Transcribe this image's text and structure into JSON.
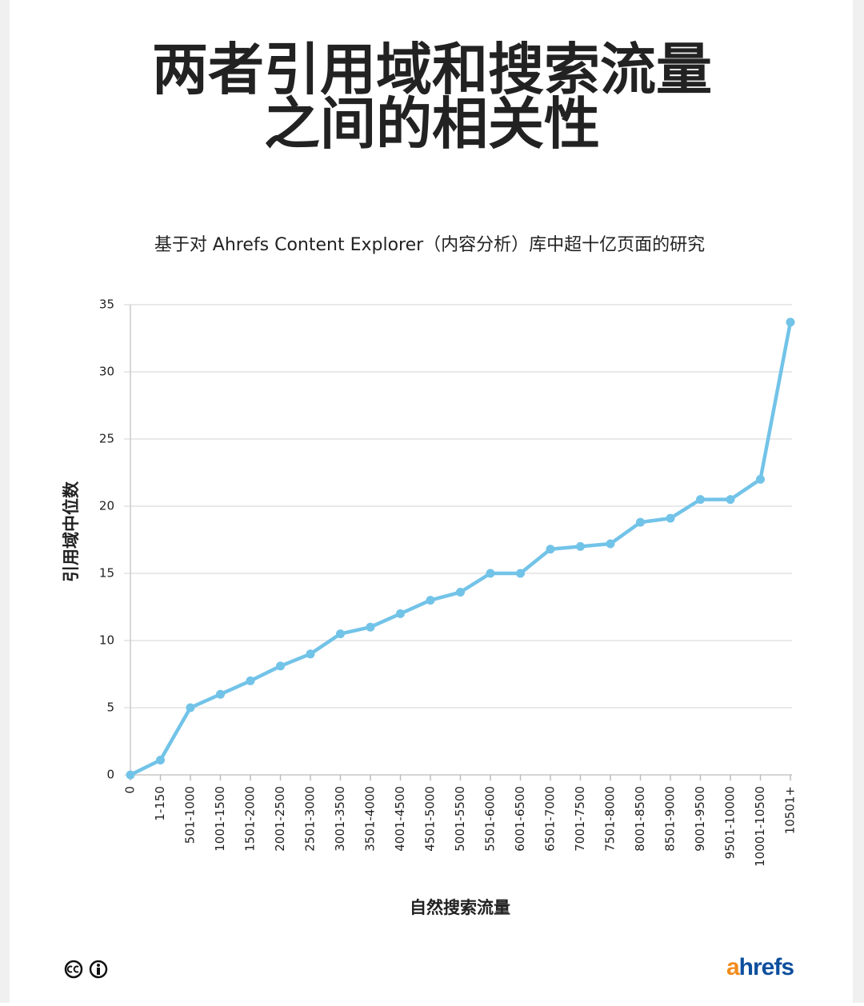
{
  "chart_data": {
    "type": "line",
    "title": [
      "两者引用域和搜索流量",
      "之间的相关性"
    ],
    "subtitle": "基于对 Ahrefs Content Explorer（内容分析）库中超十亿页面的研究",
    "y_label": "引用域中位数",
    "x_label": "自然搜索流量",
    "categories": [
      "0",
      "1-150",
      "501-1000",
      "1001-1500",
      "1501-2000",
      "2001-2500",
      "2501-3000",
      "3001-3500",
      "3501-4000",
      "4001-4500",
      "4501-5000",
      "5001-5500",
      "5501-6000",
      "6001-6500",
      "6501-7000",
      "7001-7500",
      "7501-8000",
      "8001-8500",
      "8501-9000",
      "9001-9500",
      "9501-10000",
      "10001-10500",
      "10501+"
    ],
    "values": [
      0,
      1.1,
      5,
      6,
      7,
      8.1,
      9,
      10.5,
      11,
      12,
      13,
      13.6,
      15,
      15,
      16.8,
      17,
      17.2,
      18.8,
      19.1,
      20.5,
      20.5,
      22,
      33.7
    ],
    "color": "#72c3e8",
    "ylim": [
      0,
      35
    ],
    "yticks": [
      0,
      5,
      10,
      15,
      20,
      25,
      30,
      35
    ],
    "grid": true
  },
  "brand": "ahrefs"
}
